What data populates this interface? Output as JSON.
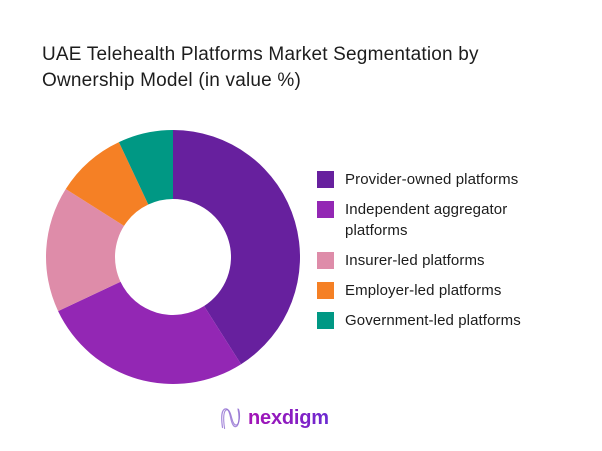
{
  "title_lines": [
    "UAE Telehealth Platforms Market Segmentation by",
    "Ownership Model (in value %)"
  ],
  "chart_data": {
    "type": "pie",
    "subtype": "donut",
    "title": "UAE Telehealth Platforms Market Segmentation by Ownership Model (in value %)",
    "categories": [
      "Provider-owned platforms",
      "Independent aggregator platforms",
      "Insurer-led platforms",
      "Employer-led platforms",
      "Government-led platforms"
    ],
    "values": [
      41,
      27,
      16,
      9,
      7
    ],
    "unit": "percent",
    "colors": [
      "#67209E",
      "#9327B4",
      "#DE8CA9",
      "#F58025",
      "#009884"
    ],
    "start_angle_deg": 0,
    "direction": "clockwise",
    "inner_radius_ratio": 0.457,
    "legend_position": "right",
    "data_labels_shown": false
  },
  "logo": {
    "brand": "nexdigm",
    "brand_color": "#8714B6",
    "mark_color": "#A78BDC"
  }
}
